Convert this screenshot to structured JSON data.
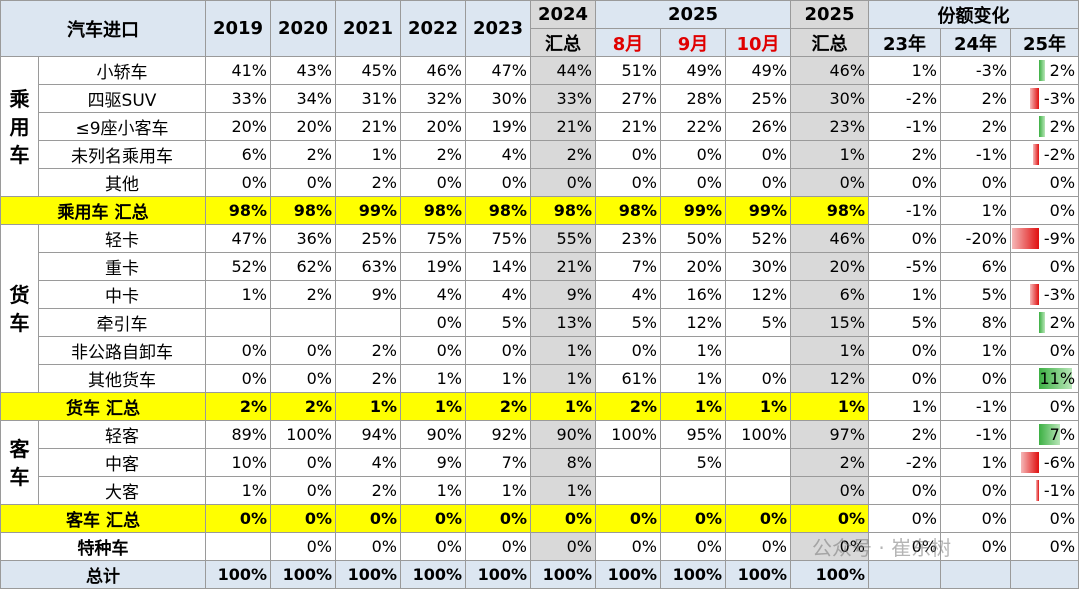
{
  "header": {
    "title": "汽车进口",
    "years": [
      "2019",
      "2020",
      "2021",
      "2022",
      "2023"
    ],
    "y2024": "2024",
    "y2024_sub": "汇总",
    "y2025": "2025",
    "months": [
      "8月",
      "9月",
      "10月"
    ],
    "y2025_total": "2025",
    "y2025_total_sub": "汇总",
    "share": "份额变化",
    "share_cols": [
      "23年",
      "24年",
      "25年"
    ]
  },
  "groups": [
    {
      "name": "乘用车",
      "rows": [
        {
          "label": "小轿车",
          "cells": [
            "41%",
            "43%",
            "45%",
            "46%",
            "47%",
            "44%",
            "51%",
            "49%",
            "49%",
            "46%",
            "1%",
            "-3%",
            "2%"
          ]
        },
        {
          "label": "四驱SUV",
          "cells": [
            "33%",
            "34%",
            "31%",
            "32%",
            "30%",
            "33%",
            "27%",
            "28%",
            "25%",
            "30%",
            "-2%",
            "2%",
            "-3%"
          ]
        },
        {
          "label": "≤9座小客车",
          "cells": [
            "20%",
            "20%",
            "21%",
            "20%",
            "19%",
            "21%",
            "21%",
            "22%",
            "26%",
            "23%",
            "-1%",
            "2%",
            "2%"
          ]
        },
        {
          "label": "未列名乘用车",
          "cells": [
            "6%",
            "2%",
            "1%",
            "2%",
            "4%",
            "2%",
            "0%",
            "0%",
            "0%",
            "1%",
            "2%",
            "-1%",
            "-2%"
          ]
        },
        {
          "label": "其他",
          "cells": [
            "0%",
            "0%",
            "2%",
            "0%",
            "0%",
            "0%",
            "0%",
            "0%",
            "0%",
            "0%",
            "0%",
            "0%",
            "0%"
          ]
        }
      ],
      "total": {
        "label": "乘用车 汇总",
        "cells": [
          "98%",
          "98%",
          "99%",
          "98%",
          "98%",
          "98%",
          "98%",
          "99%",
          "99%",
          "98%",
          "-1%",
          "1%",
          "0%"
        ]
      }
    },
    {
      "name": "货车",
      "rows": [
        {
          "label": "轻卡",
          "cells": [
            "47%",
            "36%",
            "25%",
            "75%",
            "75%",
            "55%",
            "23%",
            "50%",
            "52%",
            "46%",
            "0%",
            "-20%",
            "-9%"
          ]
        },
        {
          "label": "重卡",
          "cells": [
            "52%",
            "62%",
            "63%",
            "19%",
            "14%",
            "21%",
            "7%",
            "20%",
            "30%",
            "20%",
            "-5%",
            "6%",
            "0%"
          ]
        },
        {
          "label": "中卡",
          "cells": [
            "1%",
            "2%",
            "9%",
            "4%",
            "4%",
            "9%",
            "4%",
            "16%",
            "12%",
            "6%",
            "1%",
            "5%",
            "-3%"
          ]
        },
        {
          "label": "牵引车",
          "cells": [
            null,
            null,
            null,
            "0%",
            "5%",
            "13%",
            "5%",
            "12%",
            "5%",
            "15%",
            "5%",
            "8%",
            "2%"
          ]
        },
        {
          "label": "非公路自卸车",
          "cells": [
            "0%",
            "0%",
            "2%",
            "0%",
            "0%",
            "1%",
            "0%",
            "1%",
            null,
            "1%",
            "0%",
            "1%",
            "0%"
          ]
        },
        {
          "label": "其他货车",
          "cells": [
            "0%",
            "0%",
            "2%",
            "1%",
            "1%",
            "1%",
            "61%",
            "1%",
            "0%",
            "12%",
            "0%",
            "0%",
            "11%"
          ]
        }
      ],
      "total": {
        "label": "货车 汇总",
        "cells": [
          "2%",
          "2%",
          "1%",
          "1%",
          "2%",
          "1%",
          "2%",
          "1%",
          "1%",
          "1%",
          "1%",
          "-1%",
          "0%"
        ]
      }
    },
    {
      "name": "客车",
      "rows": [
        {
          "label": "轻客",
          "cells": [
            "89%",
            "100%",
            "94%",
            "90%",
            "92%",
            "90%",
            "100%",
            "95%",
            "100%",
            "97%",
            "2%",
            "-1%",
            "7%"
          ]
        },
        {
          "label": "中客",
          "cells": [
            "10%",
            "0%",
            "4%",
            "9%",
            "7%",
            "8%",
            null,
            "5%",
            null,
            "2%",
            "-2%",
            "1%",
            "-6%"
          ]
        },
        {
          "label": "大客",
          "cells": [
            "1%",
            "0%",
            "2%",
            "1%",
            "1%",
            "1%",
            null,
            null,
            null,
            "0%",
            "0%",
            "0%",
            "-1%"
          ]
        }
      ],
      "total": {
        "label": "客车 汇总",
        "cells": [
          "0%",
          "0%",
          "0%",
          "0%",
          "0%",
          "0%",
          "0%",
          "0%",
          "0%",
          "0%",
          "0%",
          "0%",
          "0%"
        ]
      }
    }
  ],
  "special": {
    "label": "特种车",
    "cells": [
      null,
      "0%",
      "0%",
      "0%",
      "0%",
      "0%",
      "0%",
      "0%",
      "0%",
      "0%",
      "0%",
      "0%",
      "0%"
    ]
  },
  "grand_total": {
    "label": "总计",
    "cells": [
      "100%",
      "100%",
      "100%",
      "100%",
      "100%",
      "100%",
      "100%",
      "100%",
      "100%",
      "100%",
      null,
      null,
      null
    ]
  },
  "watermark": "公众号 · 崔东树"
}
